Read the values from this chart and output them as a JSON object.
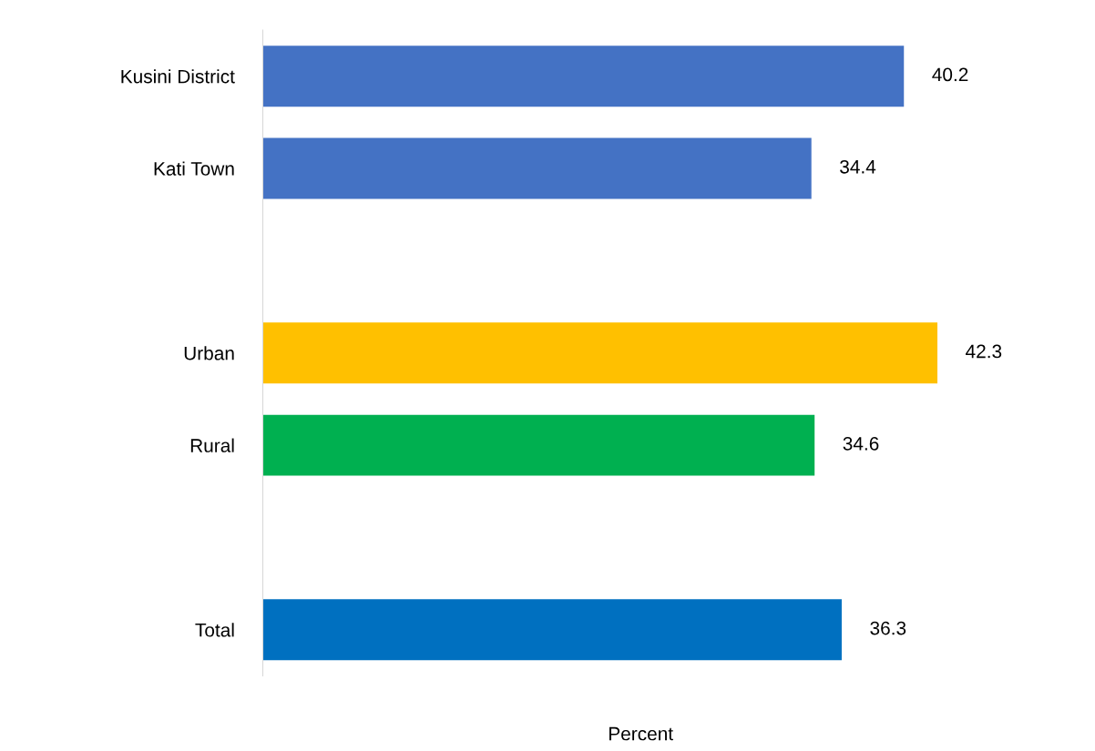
{
  "chart_data": {
    "type": "bar",
    "orientation": "horizontal",
    "xlabel": "Percent",
    "categories": [
      "Kusini District",
      "Kati Town",
      null,
      "Urban",
      "Rural",
      null,
      "Total"
    ],
    "values": [
      40.2,
      34.4,
      null,
      42.3,
      34.6,
      null,
      36.3
    ],
    "colors": [
      "#4472c4",
      "#4472c4",
      null,
      "#ffc000",
      "#00b050",
      null,
      "#0070c0"
    ],
    "data_labels": true,
    "tick_labels": "y",
    "grid": false,
    "legend": false
  }
}
